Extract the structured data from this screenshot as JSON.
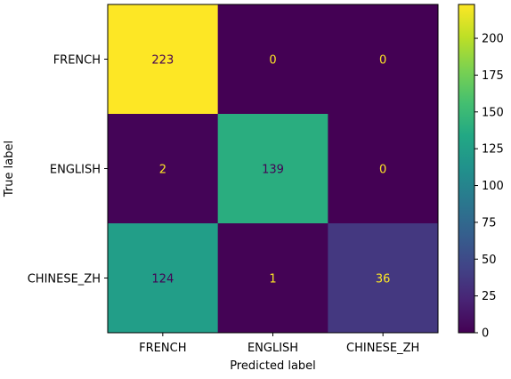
{
  "chart_data": {
    "type": "heatmap",
    "title": "",
    "xlabel": "Predicted label",
    "ylabel": "True label",
    "x_categories": [
      "FRENCH",
      "ENGLISH",
      "CHINESE_ZH"
    ],
    "y_categories": [
      "FRENCH",
      "ENGLISH",
      "CHINESE_ZH"
    ],
    "values": [
      [
        223,
        0,
        0
      ],
      [
        2,
        139,
        0
      ],
      [
        124,
        1,
        36
      ]
    ],
    "value_range": [
      0,
      223
    ],
    "colormap": "viridis",
    "colorbar": {
      "ticks": [
        0,
        25,
        50,
        75,
        100,
        125,
        150,
        175,
        200
      ],
      "range": [
        0,
        223
      ]
    },
    "annotation_colors": {
      "on_dark": "#fde725",
      "on_light": "#440154"
    },
    "grid": false
  }
}
